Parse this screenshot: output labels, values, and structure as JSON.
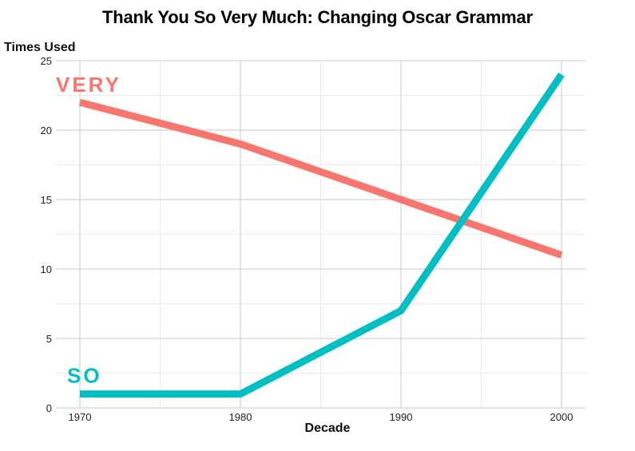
{
  "chart_data": {
    "type": "line",
    "title": "Thank You So Very Much: Changing Oscar Grammar",
    "xlabel": "Decade",
    "ylabel": "Times Used",
    "x": [
      1970,
      1980,
      1990,
      2000
    ],
    "xlim": [
      1970,
      2000
    ],
    "ylim": [
      0,
      25
    ],
    "x_ticks": [
      "1970",
      "1980",
      "1990",
      "2000"
    ],
    "y_ticks": [
      "0",
      "5",
      "10",
      "15",
      "20",
      "25"
    ],
    "grid": true,
    "legend": "direct labels",
    "series": [
      {
        "name": "VERY",
        "values": [
          22,
          19,
          15,
          11
        ],
        "color": "#f8766d"
      },
      {
        "name": "SO",
        "values": [
          1,
          1,
          7,
          24
        ],
        "color": "#00bfc4"
      }
    ]
  }
}
